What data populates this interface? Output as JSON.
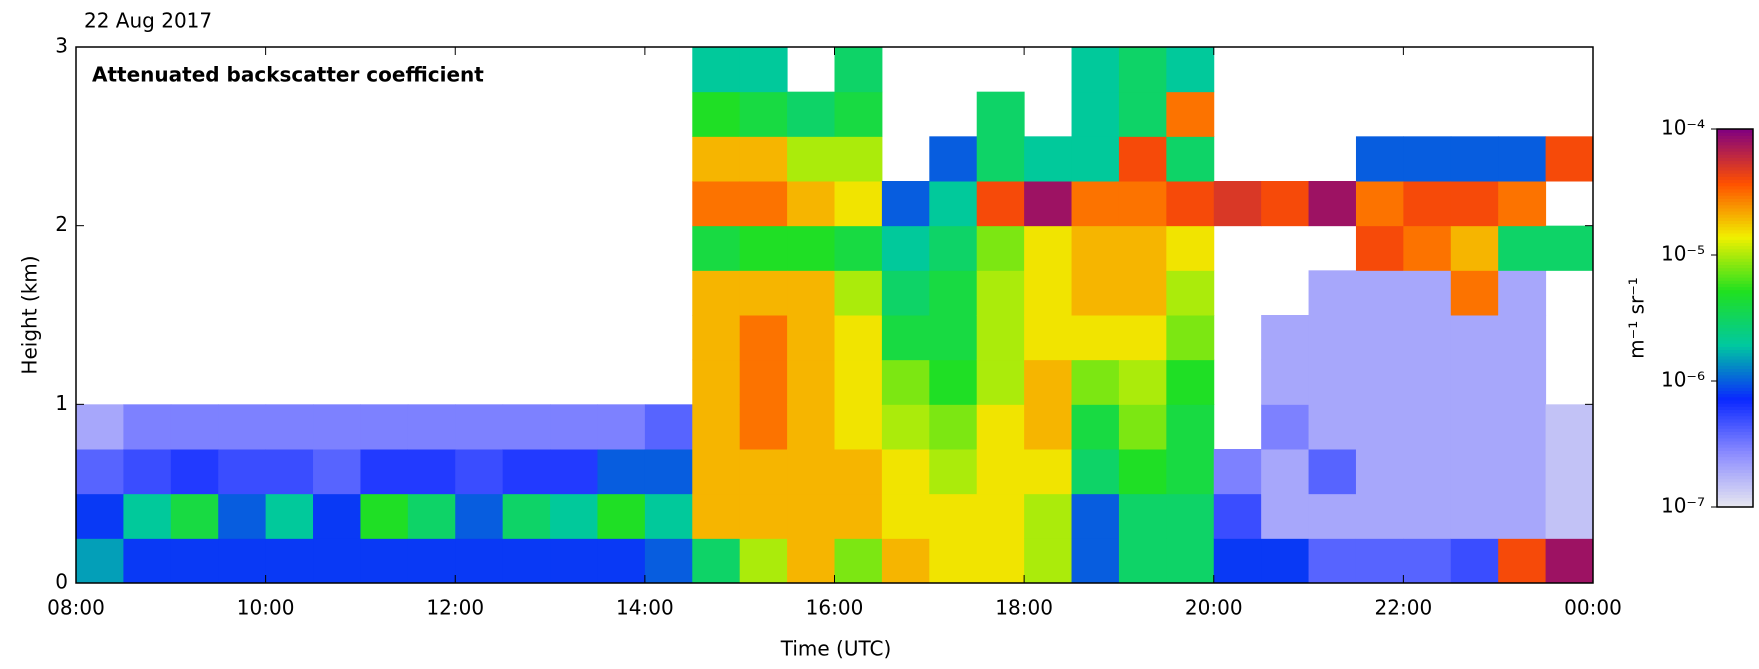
{
  "chart_data": {
    "type": "heatmap",
    "date": "22 Aug 2017",
    "title": "Attenuated backscatter coefficient",
    "x_label": "Time (UTC)",
    "y_label": "Height (km)",
    "xlim": [
      8,
      24
    ],
    "xticks": [
      {
        "value": 8,
        "label": "08:00"
      },
      {
        "value": 10,
        "label": "10:00"
      },
      {
        "value": 12,
        "label": "12:00"
      },
      {
        "value": 14,
        "label": "14:00"
      },
      {
        "value": 16,
        "label": "16:00"
      },
      {
        "value": 18,
        "label": "18:00"
      },
      {
        "value": 20,
        "label": "20:00"
      },
      {
        "value": 22,
        "label": "22:00"
      },
      {
        "value": 24,
        "label": "00:00"
      }
    ],
    "ylim": [
      0,
      3
    ],
    "yticks": [
      0,
      1,
      2,
      3
    ],
    "x": [
      8.25,
      8.75,
      9.25,
      9.75,
      10.25,
      10.75,
      11.25,
      11.75,
      12.25,
      12.75,
      13.25,
      13.75,
      14.25,
      14.75,
      15.25,
      15.75,
      16.25,
      16.75,
      17.25,
      17.75,
      18.25,
      18.75,
      19.25,
      19.75,
      20.25,
      20.75,
      21.25,
      21.75,
      22.25,
      22.75,
      23.25,
      23.75
    ],
    "y": [
      0.125,
      0.375,
      0.625,
      0.875,
      1.125,
      1.375,
      1.625,
      1.875,
      2.125,
      2.375,
      2.625,
      2.875
    ],
    "z": [
      [
        1.5e-06,
        8e-07,
        4e-07,
        2e-07,
        null,
        null,
        null,
        null,
        null,
        null,
        null,
        null
      ],
      [
        8e-07,
        2e-06,
        5e-07,
        3e-07,
        null,
        null,
        null,
        null,
        null,
        null,
        null,
        null
      ],
      [
        8e-07,
        4e-06,
        6e-07,
        3e-07,
        null,
        null,
        null,
        null,
        null,
        null,
        null,
        null
      ],
      [
        8e-07,
        1e-06,
        5e-07,
        3e-07,
        null,
        null,
        null,
        null,
        null,
        null,
        null,
        null
      ],
      [
        8e-07,
        2e-06,
        5e-07,
        3e-07,
        null,
        null,
        null,
        null,
        null,
        null,
        null,
        null
      ],
      [
        8e-07,
        8e-07,
        4e-07,
        3e-07,
        null,
        null,
        null,
        null,
        null,
        null,
        null,
        null
      ],
      [
        8e-07,
        5e-06,
        6e-07,
        3e-07,
        null,
        null,
        null,
        null,
        null,
        null,
        null,
        null
      ],
      [
        8e-07,
        3e-06,
        6e-07,
        3e-07,
        null,
        null,
        null,
        null,
        null,
        null,
        null,
        null
      ],
      [
        8e-07,
        1e-06,
        5e-07,
        3e-07,
        null,
        null,
        null,
        null,
        null,
        null,
        null,
        null
      ],
      [
        8e-07,
        3e-06,
        6e-07,
        3e-07,
        null,
        null,
        null,
        null,
        null,
        null,
        null,
        null
      ],
      [
        8e-07,
        2e-06,
        6e-07,
        3e-07,
        null,
        null,
        null,
        null,
        null,
        null,
        null,
        null
      ],
      [
        8e-07,
        5e-06,
        1e-06,
        3e-07,
        null,
        null,
        null,
        null,
        null,
        null,
        null,
        null
      ],
      [
        1e-06,
        2e-06,
        1e-06,
        4e-07,
        null,
        null,
        null,
        null,
        null,
        null,
        null,
        null
      ],
      [
        3e-06,
        2e-05,
        2e-05,
        2e-05,
        2e-05,
        2e-05,
        2e-05,
        4e-06,
        3e-05,
        2e-05,
        5e-06,
        2e-06
      ],
      [
        1e-05,
        2e-05,
        2e-05,
        3e-05,
        3e-05,
        3e-05,
        2e-05,
        5e-06,
        3e-05,
        2e-05,
        4e-06,
        2e-06
      ],
      [
        2e-05,
        2e-05,
        2e-05,
        2e-05,
        2e-05,
        2e-05,
        2e-05,
        5e-06,
        2e-05,
        1e-05,
        3e-06,
        null
      ],
      [
        8e-06,
        2e-05,
        2e-05,
        1.5e-05,
        1.5e-05,
        1.5e-05,
        1e-05,
        4e-06,
        1.5e-05,
        1e-05,
        4e-06,
        3e-06
      ],
      [
        2e-05,
        1.5e-05,
        1.5e-05,
        1e-05,
        8e-06,
        4e-06,
        3e-06,
        2e-06,
        1e-06,
        null,
        null,
        null
      ],
      [
        1.5e-05,
        1.5e-05,
        1e-05,
        8e-06,
        5e-06,
        4e-06,
        4e-06,
        3e-06,
        2e-06,
        1e-06,
        null,
        null
      ],
      [
        1.5e-05,
        1.5e-05,
        1.5e-05,
        1.5e-05,
        1e-05,
        1e-05,
        1e-05,
        8e-06,
        4e-05,
        3e-06,
        3e-06,
        null
      ],
      [
        1e-05,
        1e-05,
        1.5e-05,
        2e-05,
        2e-05,
        1.5e-05,
        1.5e-05,
        1.5e-05,
        8e-05,
        2e-06,
        null,
        null
      ],
      [
        1e-06,
        1e-06,
        3e-06,
        4e-06,
        8e-06,
        1.5e-05,
        2e-05,
        2e-05,
        3e-05,
        2e-06,
        2e-06,
        2e-06
      ],
      [
        3e-06,
        3e-06,
        5e-06,
        8e-06,
        1e-05,
        1.5e-05,
        2e-05,
        2e-05,
        3e-05,
        4e-05,
        3e-06,
        3e-06
      ],
      [
        3e-06,
        3e-06,
        4e-06,
        4e-06,
        5e-06,
        8e-06,
        1e-05,
        1.5e-05,
        4e-05,
        3e-06,
        3e-05,
        2e-06
      ],
      [
        8e-07,
        5e-07,
        3e-07,
        null,
        null,
        null,
        null,
        null,
        5e-05,
        null,
        null,
        null
      ],
      [
        8e-07,
        2e-07,
        2e-07,
        3e-07,
        2e-07,
        2e-07,
        null,
        null,
        4e-05,
        null,
        null,
        null
      ],
      [
        4e-07,
        2e-07,
        4e-07,
        2e-07,
        2e-07,
        2e-07,
        2e-07,
        null,
        8e-05,
        null,
        null,
        null
      ],
      [
        4e-07,
        2e-07,
        2e-07,
        2e-07,
        2e-07,
        2e-07,
        2e-07,
        4e-05,
        3e-05,
        1e-06,
        null,
        null
      ],
      [
        4e-07,
        2e-07,
        2e-07,
        2e-07,
        2e-07,
        2e-07,
        2e-07,
        3e-05,
        4e-05,
        1e-06,
        null,
        null
      ],
      [
        5e-07,
        2e-07,
        2e-07,
        2e-07,
        2e-07,
        2e-07,
        3e-05,
        2e-05,
        4e-05,
        1e-06,
        null,
        null
      ],
      [
        4e-05,
        2e-07,
        2e-07,
        2e-07,
        2e-07,
        2e-07,
        2e-07,
        3e-06,
        3e-05,
        1e-06,
        null,
        null
      ],
      [
        8e-05,
        1.5e-07,
        1.5e-07,
        1.5e-07,
        null,
        null,
        null,
        3e-06,
        null,
        4e-05,
        null,
        null
      ]
    ],
    "colormap": [
      "#e8e8f0",
      "#8c8cff",
      "#0a28ff",
      "#00c8a0",
      "#20e020",
      "#f0f000",
      "#ff5000",
      "#800080"
    ],
    "colorbar": {
      "label": "m⁻¹ sr⁻¹",
      "log": true,
      "lim": [
        1e-07,
        0.0001
      ],
      "ticks": [
        {
          "value": 0.0001,
          "label": "10⁻⁴"
        },
        {
          "value": 1e-05,
          "label": "10⁻⁵"
        },
        {
          "value": 1e-06,
          "label": "10⁻⁶"
        },
        {
          "value": 1e-07,
          "label": "10⁻⁷"
        }
      ]
    }
  }
}
